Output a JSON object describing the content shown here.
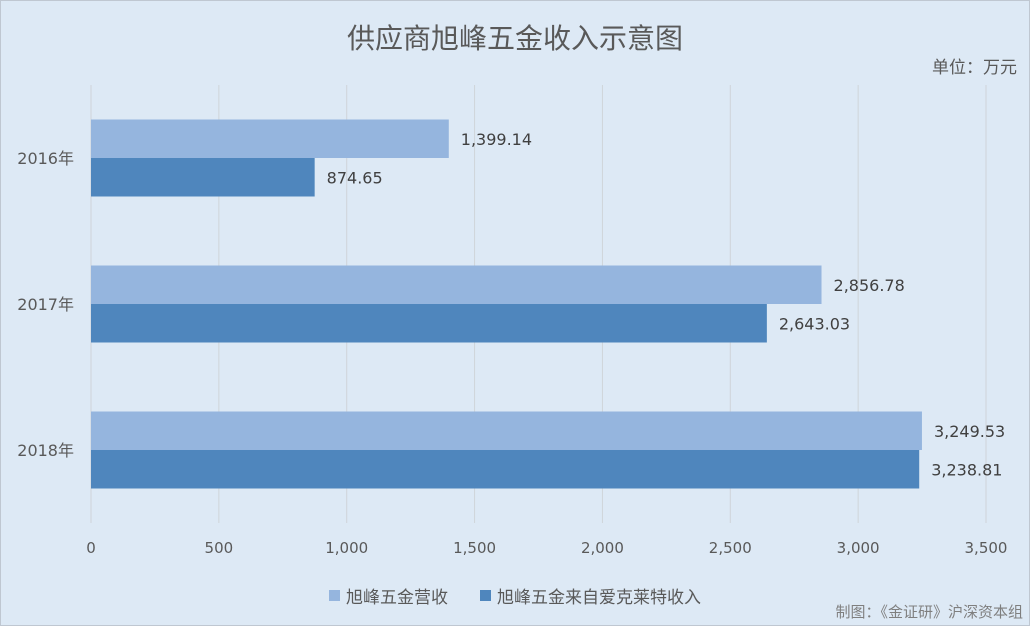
{
  "chart_data": {
    "type": "bar",
    "orientation": "horizontal",
    "title": "供应商旭峰五金收入示意图",
    "unit_label": "单位：万元",
    "source": "制图：《金证研》沪深资本组",
    "categories": [
      "2016年",
      "2017年",
      "2018年"
    ],
    "series": [
      {
        "name": "旭峰五金营收",
        "values": [
          1399.14,
          2856.78,
          3249.53
        ],
        "labels": [
          "1,399.14",
          "2,856.78",
          "3,249.53"
        ],
        "color": "#95b5de"
      },
      {
        "name": "旭峰五金来自爱克莱特收入",
        "values": [
          874.65,
          2643.03,
          3238.81
        ],
        "labels": [
          "874.65",
          "2,643.03",
          "3,238.81"
        ],
        "color": "#4f86bd"
      }
    ],
    "xlim": [
      0,
      3500
    ],
    "xticks": [
      0,
      500,
      1000,
      1500,
      2000,
      2500,
      3000,
      3500
    ],
    "xtick_labels": [
      "0",
      "500",
      "1,000",
      "1,500",
      "2,000",
      "2,500",
      "3,000",
      "3,500"
    ],
    "grid": "vertical",
    "legend_position": "bottom"
  }
}
